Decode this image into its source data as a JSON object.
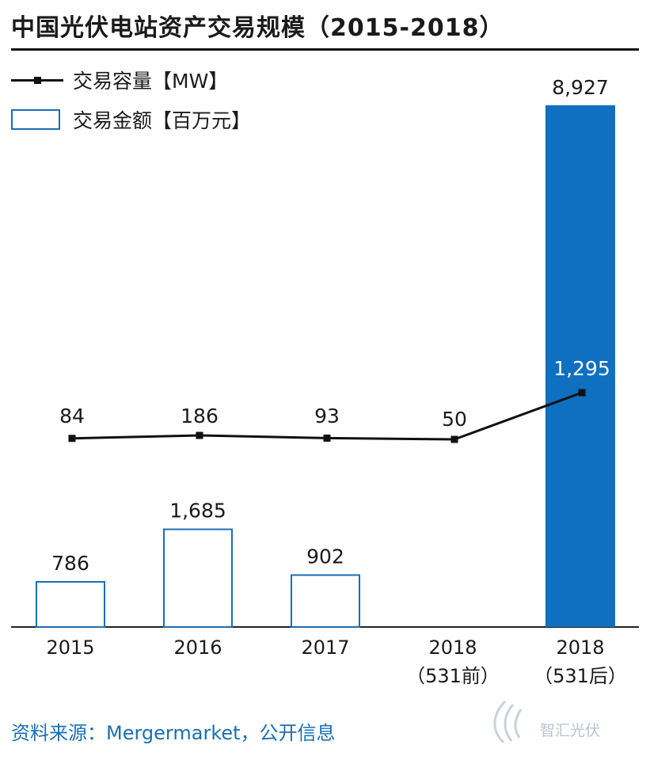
{
  "title": "中国光伏电站资产交易规模（2015-2018）",
  "legend": {
    "capacity": "交易容量【MW】",
    "amount": "交易金额【百万元】"
  },
  "colors": {
    "bar_fill_highlight": "#0f6fc0",
    "bar_outline": "#1a6fb4",
    "line": "#111111",
    "source_text": "#1a6fb4"
  },
  "chart_data": {
    "type": "bar",
    "categories": [
      "2015",
      "2016",
      "2017",
      "2018\n（531前）",
      "2018\n（531后）"
    ],
    "series": [
      {
        "name": "交易金额【百万元】",
        "chart_type": "bar",
        "values": [
          786,
          1685,
          902,
          null,
          8927
        ],
        "labels": [
          "786",
          "1,685",
          "902",
          "",
          "8,927"
        ],
        "highlight": [
          false,
          false,
          false,
          false,
          true
        ]
      },
      {
        "name": "交易容量【MW】",
        "chart_type": "line",
        "values": [
          84,
          186,
          93,
          50,
          1295
        ],
        "labels": [
          "84",
          "186",
          "93",
          "50",
          "1,295"
        ]
      }
    ],
    "xlabel": "",
    "ylabel": "",
    "grid": false,
    "legend_position": "top-left"
  },
  "source": "资料来源：Mergermarket，公开信息",
  "watermark": "智汇光伏"
}
